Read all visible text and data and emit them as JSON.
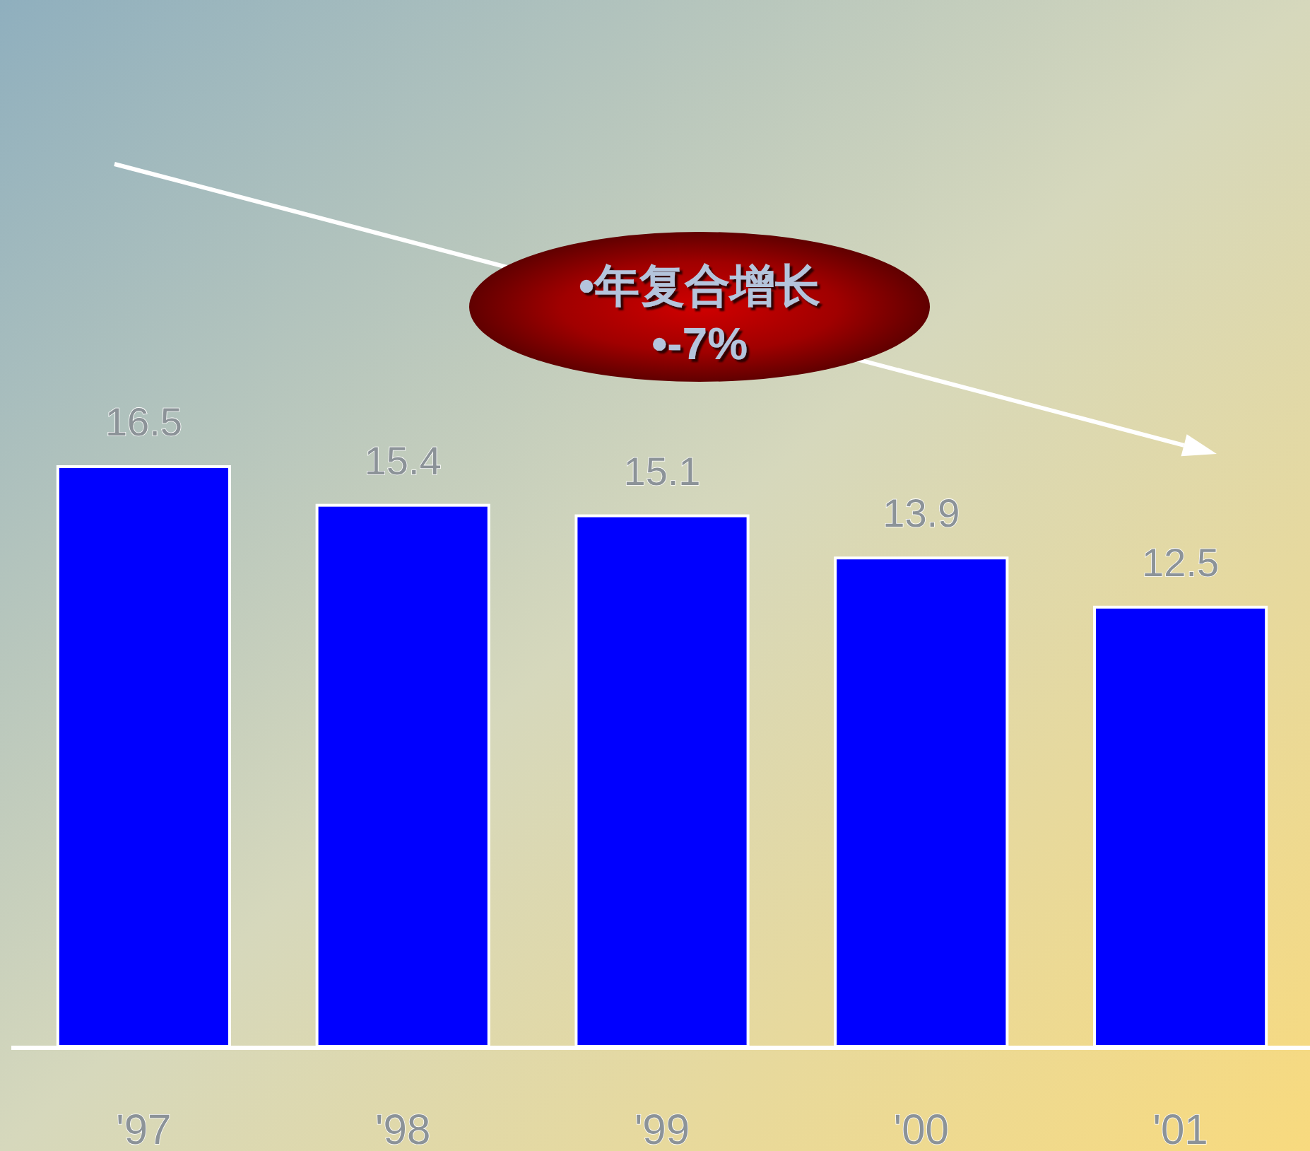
{
  "chart_data": {
    "type": "bar",
    "categories": [
      "'97",
      "'98",
      "'99",
      "'00",
      "'01"
    ],
    "values": [
      16.5,
      15.4,
      15.1,
      13.9,
      12.5
    ],
    "color": "#0000ff",
    "data_labels": true,
    "annotations": [
      "•年复合增长",
      "•-7%"
    ]
  }
}
